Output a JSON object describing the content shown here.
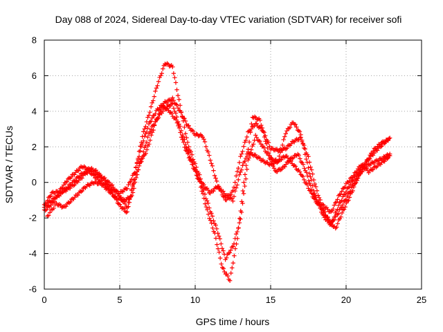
{
  "chart_data": {
    "type": "scatter",
    "title": "Day 088 of 2024, Sidereal Day-to-day VTEC variation (SDTVAR) for receiver sofi",
    "xlabel": "GPS time / hours",
    "ylabel": "SDTVAR / TECUs",
    "xlim": [
      0,
      25
    ],
    "ylim": [
      -6,
      8
    ],
    "xticks": [
      0,
      5,
      10,
      15,
      20,
      25
    ],
    "yticks": [
      -6,
      -4,
      -2,
      0,
      2,
      4,
      6,
      8
    ],
    "grid": true,
    "marker": "+",
    "color": "#ff0000",
    "series": [
      {
        "x": [
          0.0,
          0.5,
          1.0,
          1.5,
          2.0,
          2.5,
          3.0,
          3.5,
          4.0,
          4.5,
          5.0,
          5.5,
          6.0,
          6.5,
          7.0,
          7.5,
          8.0,
          8.5,
          9.0,
          9.5,
          10.0,
          10.5,
          11.0,
          11.5,
          12.0,
          12.5,
          13.0,
          13.5,
          14.0,
          14.5,
          15.0,
          15.5,
          16.0,
          16.5,
          17.0,
          17.5,
          18.0,
          18.5,
          19.0,
          19.5,
          20.0,
          20.5,
          21.0,
          21.5,
          22.0,
          22.5,
          22.9
        ],
        "y": [
          -1.4,
          -1.0,
          -0.7,
          -0.3,
          0.1,
          0.5,
          0.6,
          0.2,
          -0.1,
          -0.4,
          -0.6,
          -0.3,
          0.6,
          2.2,
          3.4,
          4.1,
          4.5,
          4.7,
          4.0,
          3.2,
          2.7,
          2.6,
          1.3,
          -0.2,
          -1.0,
          -0.5,
          1.4,
          2.8,
          3.3,
          2.9,
          1.9,
          1.8,
          1.9,
          2.3,
          2.5,
          1.4,
          -0.3,
          -1.6,
          -2.3,
          -1.7,
          -0.9,
          -0.1,
          0.6,
          1.0,
          1.2,
          1.4,
          1.6
        ]
      },
      {
        "x": [
          0.0,
          0.5,
          1.0,
          1.5,
          2.0,
          2.5,
          3.0,
          3.5,
          4.0,
          4.5,
          5.0,
          5.5,
          6.0,
          6.5,
          7.0,
          7.5,
          8.0,
          8.5,
          9.0,
          9.5,
          10.0,
          10.5,
          11.0,
          11.5,
          12.0,
          12.5,
          13.0,
          13.5,
          14.0,
          14.5,
          15.0,
          15.5,
          16.0,
          16.5,
          17.0,
          17.5,
          18.0,
          18.5,
          19.0,
          19.5,
          20.0,
          20.5,
          21.0,
          21.5,
          22.0,
          22.5,
          22.9
        ],
        "y": [
          -1.3,
          -0.6,
          -0.5,
          0.1,
          0.5,
          0.9,
          0.7,
          0.4,
          0.2,
          -0.2,
          -0.8,
          -1.4,
          0.2,
          1.5,
          2.9,
          3.6,
          4.2,
          4.4,
          3.1,
          1.8,
          0.7,
          -0.3,
          -1.6,
          -2.8,
          -4.3,
          -3.6,
          -2.1,
          1.2,
          2.6,
          2.0,
          1.3,
          1.2,
          2.8,
          3.4,
          2.7,
          0.8,
          -0.9,
          -1.9,
          -2.4,
          -1.3,
          -0.5,
          0.2,
          0.8,
          1.3,
          1.8,
          2.2,
          2.5
        ]
      },
      {
        "x": [
          0.0,
          0.5,
          1.0,
          1.5,
          2.0,
          2.5,
          3.0,
          3.5,
          4.0,
          4.5,
          5.0,
          5.5,
          6.0,
          6.5,
          7.0,
          7.5,
          8.0,
          8.5,
          9.0,
          9.5,
          10.0,
          10.5,
          11.0,
          11.5,
          12.0,
          12.5,
          13.0,
          13.5,
          14.0,
          14.5,
          15.0,
          15.5,
          16.0,
          16.5,
          17.0,
          17.5,
          18.0,
          18.5,
          19.0,
          19.5,
          20.0,
          20.5,
          21.0,
          21.5,
          22.0,
          22.5,
          22.9
        ],
        "y": [
          -1.6,
          -1.2,
          -0.6,
          -0.4,
          -0.1,
          0.3,
          0.8,
          0.6,
          0.1,
          -0.6,
          -1.3,
          -1.7,
          0.5,
          2.6,
          4.0,
          5.5,
          6.7,
          6.5,
          4.3,
          2.2,
          1.0,
          -0.1,
          -0.6,
          -0.2,
          -0.7,
          -1.0,
          0.6,
          1.7,
          1.5,
          1.2,
          1.0,
          1.2,
          1.5,
          1.0,
          0.5,
          -0.3,
          -1.1,
          -1.3,
          -1.7,
          -0.8,
          -0.1,
          0.4,
          1.0,
          0.6,
          0.9,
          1.2,
          1.5
        ]
      },
      {
        "x": [
          0.2,
          0.8,
          1.3,
          1.8,
          2.3,
          2.8,
          3.3,
          3.8,
          4.3,
          4.8,
          5.3,
          5.8,
          6.3,
          6.8,
          7.3,
          7.8,
          8.3,
          8.8,
          9.3,
          9.8,
          10.3,
          10.8,
          11.3,
          11.8,
          12.3,
          12.8,
          13.3,
          13.8,
          14.3,
          14.8,
          15.3,
          15.8,
          16.3,
          16.8,
          17.3,
          17.8,
          18.3,
          18.8,
          19.3,
          19.8,
          20.3,
          20.8,
          21.3,
          21.8,
          22.3,
          22.8
        ],
        "y": [
          -1.9,
          -1.2,
          -1.4,
          -1.0,
          -0.6,
          -0.2,
          0.0,
          -0.1,
          -0.5,
          -0.9,
          -1.0,
          -0.8,
          1.0,
          1.8,
          3.2,
          4.3,
          4.0,
          3.4,
          2.0,
          1.0,
          0.0,
          -1.6,
          -2.9,
          -4.8,
          -5.5,
          -3.1,
          0.5,
          3.7,
          3.5,
          1.9,
          0.6,
          0.8,
          1.3,
          1.6,
          0.7,
          -0.6,
          -1.4,
          -2.1,
          -2.6,
          -1.6,
          -0.7,
          0.3,
          1.1,
          1.8,
          2.2,
          2.4
        ]
      }
    ]
  }
}
